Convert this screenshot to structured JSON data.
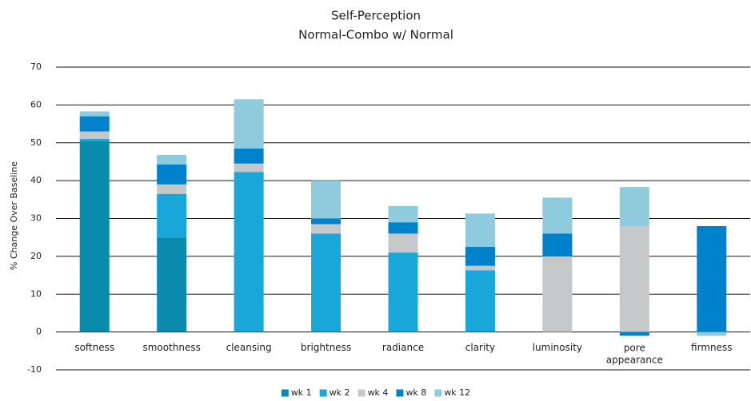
{
  "chart_data": {
    "type": "stacked_bar",
    "title": "Self-Perception",
    "subtitle": "Normal-Combo w/ Normal",
    "y_label": "% Change Over Baseline",
    "categories": [
      "softness",
      "smoothness",
      "cleansing",
      "brightness",
      "radiance",
      "clarity",
      "luminosity",
      "pore appearance",
      "firmness"
    ],
    "series": [
      {
        "name": "wk 1",
        "color": "#0a8aad",
        "values": [
          50.5,
          25,
          0,
          0,
          0,
          0,
          0,
          0,
          0
        ]
      },
      {
        "name": "wk 2",
        "color": "#19a6d8",
        "values": [
          0.5,
          11.5,
          42.3,
          26,
          21,
          16.3,
          0,
          0,
          0
        ]
      },
      {
        "name": "wk 4",
        "color": "#c6c7c9",
        "values": [
          2,
          2.5,
          2.2,
          2.5,
          5,
          1.2,
          20,
          28,
          0
        ]
      },
      {
        "name": "wk 8",
        "color": "#0081cc",
        "values": [
          4,
          5.3,
          4,
          1.5,
          3,
          5,
          6,
          -1,
          28
        ]
      },
      {
        "name": "wk 12",
        "color": "#8ecbdc",
        "values": [
          1.3,
          2.5,
          13,
          10,
          4.3,
          8.8,
          9.5,
          10.3,
          -1
        ]
      }
    ],
    "ylim": [
      -10,
      70
    ],
    "yticks": [
      -10,
      0,
      10,
      20,
      30,
      40,
      50,
      60,
      70
    ],
    "grid": true
  }
}
